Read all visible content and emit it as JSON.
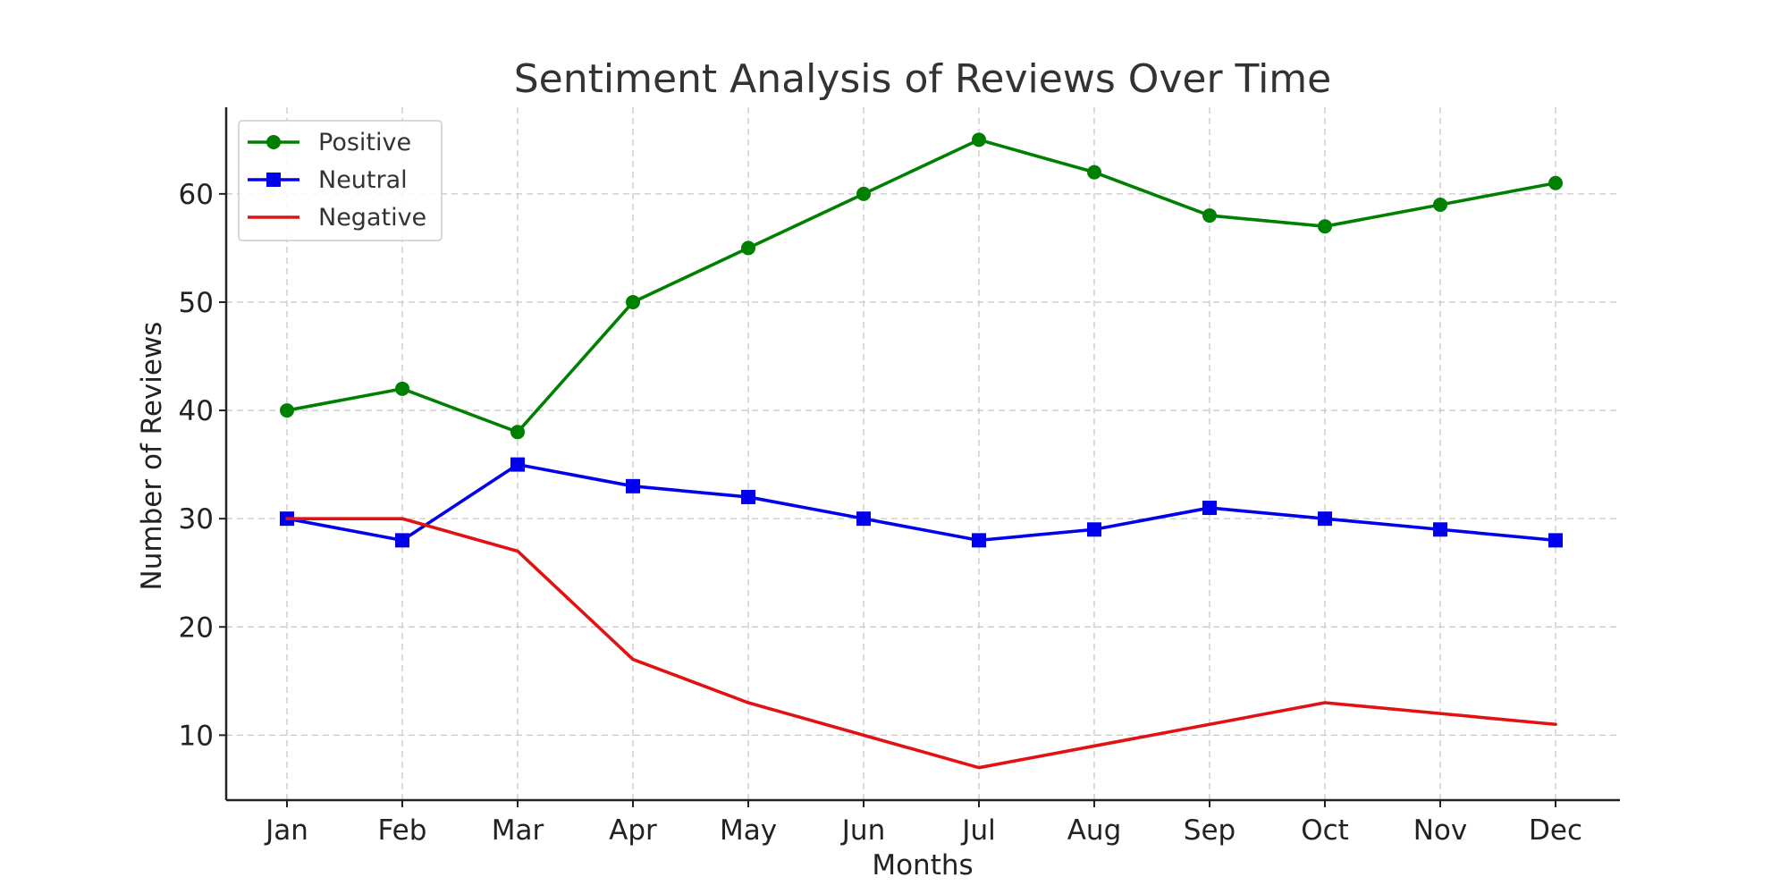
{
  "chart_data": {
    "type": "line",
    "title": "Sentiment Analysis of Reviews Over Time",
    "xlabel": "Months",
    "ylabel": "Number of Reviews",
    "categories": [
      "Jan",
      "Feb",
      "Mar",
      "Apr",
      "May",
      "Jun",
      "Jul",
      "Aug",
      "Sep",
      "Oct",
      "Nov",
      "Dec"
    ],
    "yticks": [
      "10",
      "20",
      "30",
      "40",
      "50",
      "60"
    ],
    "ylim": [
      4,
      68
    ],
    "grid": true,
    "legend_position": "top-left",
    "series": [
      {
        "name": "Positive",
        "color": "#008000",
        "marker": "circle",
        "values": [
          40,
          42,
          38,
          50,
          55,
          60,
          65,
          62,
          58,
          57,
          59,
          61
        ]
      },
      {
        "name": "Neutral",
        "color": "#0000ee",
        "marker": "square",
        "values": [
          30,
          28,
          35,
          33,
          32,
          30,
          28,
          29,
          31,
          30,
          29,
          28
        ]
      },
      {
        "name": "Negative",
        "color": "#e31212",
        "marker": "none",
        "values": [
          30,
          30,
          27,
          17,
          13,
          10,
          7,
          9,
          11,
          13,
          12,
          11
        ]
      }
    ]
  }
}
